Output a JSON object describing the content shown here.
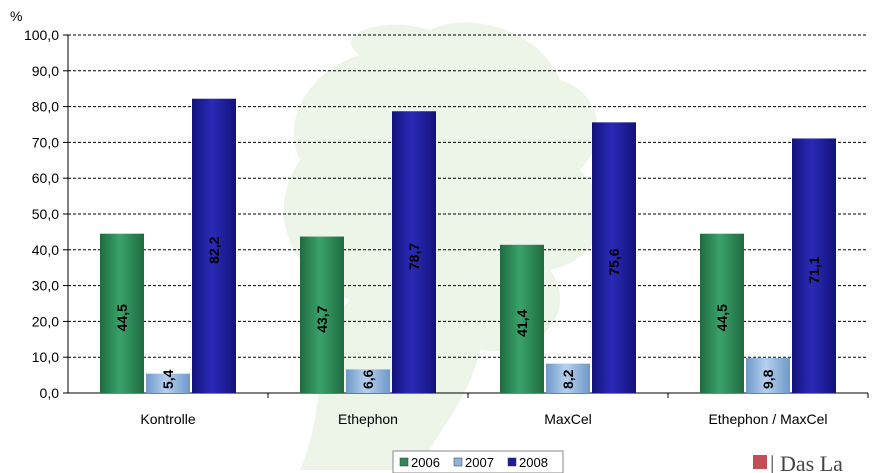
{
  "chart_data": {
    "type": "bar",
    "ylabel": "%",
    "ylim": [
      0,
      100
    ],
    "ytick_step": 10,
    "ytick_labels": [
      "0,0",
      "10,0",
      "20,0",
      "30,0",
      "40,0",
      "50,0",
      "60,0",
      "70,0",
      "80,0",
      "90,0",
      "100,0"
    ],
    "categories": [
      "Kontrolle",
      "Ethephon",
      "MaxCel",
      "Ethephon / MaxCel"
    ],
    "series": [
      {
        "name": "2006",
        "color": "#2e8b57",
        "values": [
          44.5,
          43.7,
          41.4,
          44.5
        ],
        "labels": [
          "44,5",
          "43,7",
          "41,4",
          "44,5"
        ]
      },
      {
        "name": "2007",
        "color": "#8fb4dc",
        "values": [
          5.4,
          6.6,
          8.2,
          9.8
        ],
        "labels": [
          "5,4",
          "6,6",
          "8,2",
          "9,8"
        ]
      },
      {
        "name": "2008",
        "color": "#1c1c9c",
        "values": [
          82.2,
          78.7,
          75.6,
          71.1
        ],
        "labels": [
          "82,2",
          "78,7",
          "75,6",
          "71,1"
        ]
      }
    ],
    "grid": true,
    "legend_position": "bottom-center"
  },
  "footer": {
    "logo_text": "Das La"
  }
}
